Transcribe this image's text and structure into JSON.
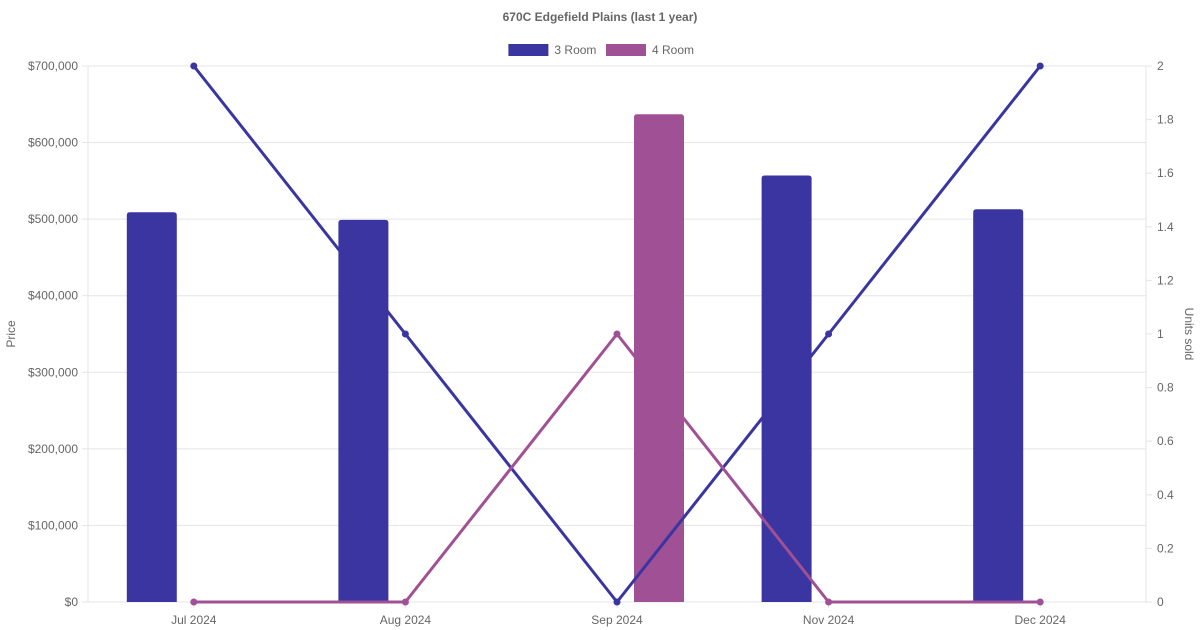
{
  "chart_data": {
    "type": "bar",
    "title": "670C Edgefield  Plains (last 1 year)",
    "categories": [
      "Jul 2024",
      "Aug 2024",
      "Sep 2024",
      "Nov 2024",
      "Dec 2024"
    ],
    "series": [
      {
        "name": "3 Room",
        "type": "bar",
        "axis": "left",
        "color": "#3a35a0",
        "values": [
          509000,
          499000,
          null,
          557000,
          513000
        ]
      },
      {
        "name": "4 Room",
        "type": "bar",
        "axis": "left",
        "color": "#a05095",
        "values": [
          null,
          null,
          637000,
          null,
          null
        ]
      },
      {
        "name": "3 Room",
        "type": "line",
        "axis": "right",
        "color": "#3a35a0",
        "values": [
          2,
          1,
          0,
          1,
          2
        ]
      },
      {
        "name": "4 Room",
        "type": "line",
        "axis": "right",
        "color": "#a05095",
        "values": [
          0,
          0,
          1,
          0,
          0
        ]
      }
    ],
    "y_left": {
      "label": "Price",
      "min": 0,
      "max": 700000,
      "ticks": [
        0,
        100000,
        200000,
        300000,
        400000,
        500000,
        600000,
        700000
      ],
      "tick_labels": [
        "$0",
        "$100,000",
        "$200,000",
        "$300,000",
        "$400,000",
        "$500,000",
        "$600,000",
        "$700,000"
      ]
    },
    "y_right": {
      "label": "Units sold",
      "min": 0,
      "max": 2,
      "ticks": [
        0,
        0.2,
        0.4,
        0.6,
        0.8,
        1,
        1.2,
        1.4,
        1.6,
        1.8,
        2
      ],
      "tick_labels": [
        "0",
        "0.2",
        "0.4",
        "0.6",
        "0.8",
        "1",
        "1.2",
        "1.4",
        "1.6",
        "1.8",
        "2"
      ]
    },
    "legend": {
      "position": "top",
      "items": [
        {
          "label": "3 Room",
          "color": "#3a35a0"
        },
        {
          "label": "4 Room",
          "color": "#a05095"
        }
      ]
    },
    "grid": true
  }
}
